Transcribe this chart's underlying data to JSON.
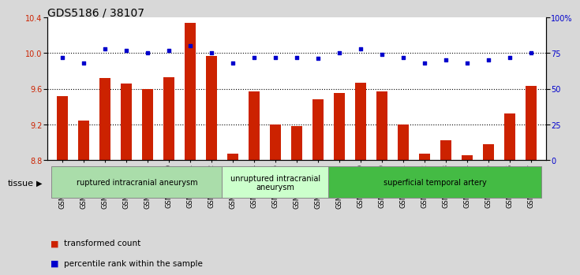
{
  "title": "GDS5186 / 38107",
  "samples": [
    "GSM1306885",
    "GSM1306886",
    "GSM1306887",
    "GSM1306888",
    "GSM1306889",
    "GSM1306890",
    "GSM1306891",
    "GSM1306892",
    "GSM1306893",
    "GSM1306894",
    "GSM1306895",
    "GSM1306896",
    "GSM1306897",
    "GSM1306898",
    "GSM1306899",
    "GSM1306900",
    "GSM1306901",
    "GSM1306902",
    "GSM1306903",
    "GSM1306904",
    "GSM1306905",
    "GSM1306906",
    "GSM1306907"
  ],
  "bar_values": [
    9.52,
    9.24,
    9.72,
    9.66,
    9.6,
    9.73,
    10.34,
    9.97,
    8.87,
    9.57,
    9.2,
    9.18,
    9.48,
    9.55,
    9.67,
    9.57,
    9.2,
    8.87,
    9.02,
    8.86,
    8.98,
    9.32,
    9.63
  ],
  "dot_values": [
    72,
    68,
    78,
    77,
    75,
    77,
    80,
    75,
    68,
    72,
    72,
    72,
    71,
    75,
    78,
    74,
    72,
    68,
    70,
    68,
    70,
    72,
    75
  ],
  "ylim_left": [
    8.8,
    10.4
  ],
  "ylim_right": [
    0,
    100
  ],
  "yticks_left": [
    8.8,
    9.2,
    9.6,
    10.0,
    10.4
  ],
  "yticks_right": [
    0,
    25,
    50,
    75,
    100
  ],
  "ytick_labels_right": [
    "0",
    "25",
    "50",
    "75",
    "100%"
  ],
  "bar_color": "#cc2200",
  "dot_color": "#0000cc",
  "bg_color": "#d8d8d8",
  "plot_bg": "#ffffff",
  "groups": [
    {
      "label": "ruptured intracranial aneurysm",
      "start": 0,
      "end": 8,
      "color": "#aaddaa"
    },
    {
      "label": "unruptured intracranial\naneurysm",
      "start": 8,
      "end": 13,
      "color": "#ccffcc"
    },
    {
      "label": "superficial temporal artery",
      "start": 13,
      "end": 23,
      "color": "#44bb44"
    }
  ],
  "tissue_label": "tissue",
  "legend_bar_label": "transformed count",
  "legend_dot_label": "percentile rank within the sample",
  "title_fontsize": 10,
  "tick_fontsize": 7,
  "label_fontsize": 8,
  "grid_lines": [
    9.2,
    9.6,
    10.0
  ],
  "bar_bottom": 8.8,
  "bar_width": 0.5
}
